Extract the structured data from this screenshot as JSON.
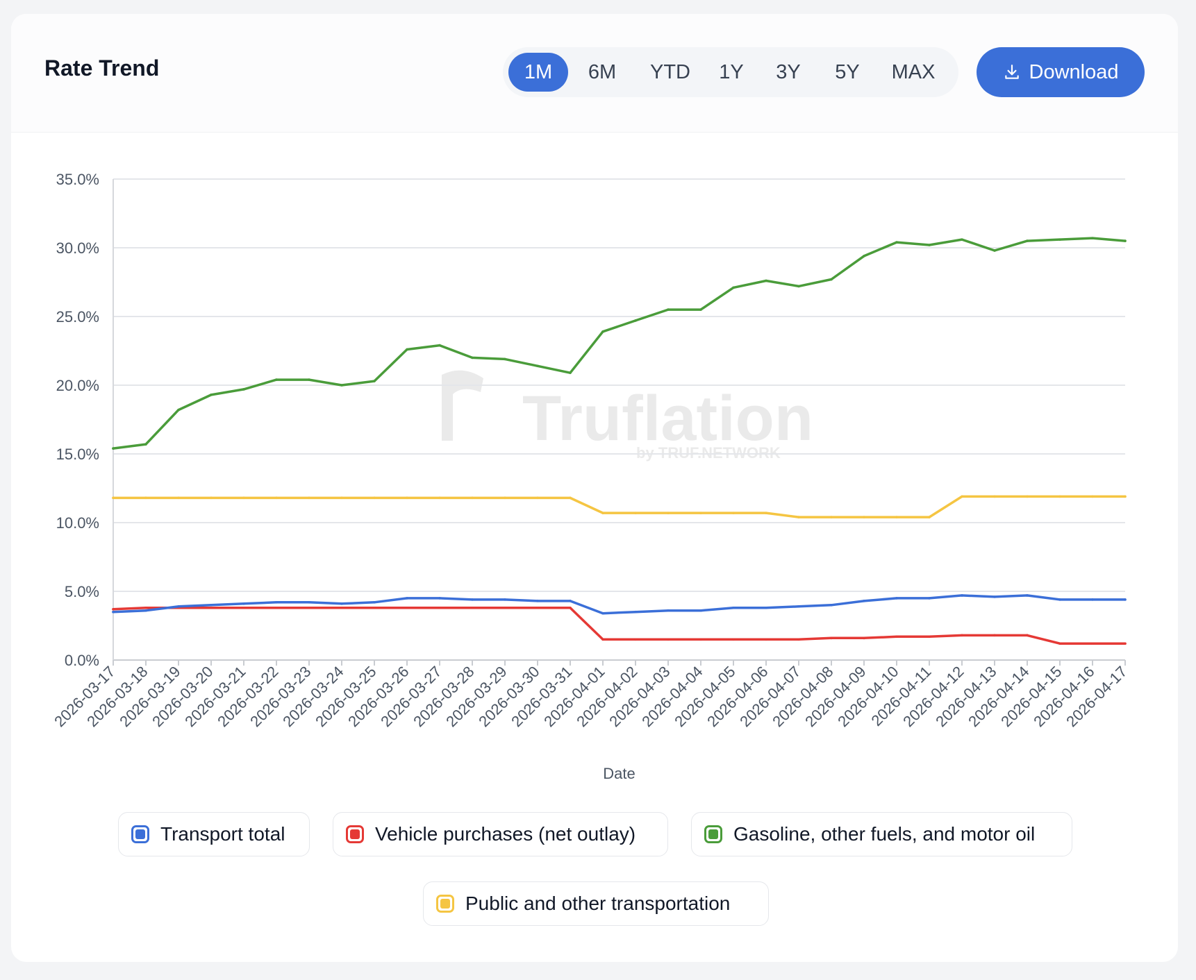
{
  "header": {
    "title": "Rate Trend",
    "ranges": [
      "1M",
      "6M",
      "YTD",
      "1Y",
      "3Y",
      "5Y",
      "MAX"
    ],
    "active_range": "1M",
    "download_label": "Download"
  },
  "watermark": {
    "brand": "Truflation",
    "tagline": "by TRUF.NETWORK"
  },
  "chart_data": {
    "type": "line",
    "title": "Rate Trend",
    "xlabel": "Date",
    "ylabel": "",
    "ylim": [
      0,
      35
    ],
    "yticks": [
      "0.0%",
      "5.0%",
      "10.0%",
      "15.0%",
      "20.0%",
      "25.0%",
      "30.0%",
      "35.0%"
    ],
    "grid": true,
    "legend_position": "bottom",
    "x": [
      "2026-03-17",
      "2026-03-18",
      "2026-03-19",
      "2026-03-20",
      "2026-03-21",
      "2026-03-22",
      "2026-03-23",
      "2026-03-24",
      "2026-03-25",
      "2026-03-26",
      "2026-03-27",
      "2026-03-28",
      "2026-03-29",
      "2026-03-30",
      "2026-03-31",
      "2026-04-01",
      "2026-04-02",
      "2026-04-03",
      "2026-04-04",
      "2026-04-05",
      "2026-04-06",
      "2026-04-07",
      "2026-04-08",
      "2026-04-09",
      "2026-04-10",
      "2026-04-11",
      "2026-04-12",
      "2026-04-13",
      "2026-04-14",
      "2026-04-15",
      "2026-04-16",
      "2026-04-17"
    ],
    "series": [
      {
        "name": "Transport total",
        "color": "#3b6fd8",
        "values": [
          3.5,
          3.6,
          3.9,
          4.0,
          4.1,
          4.2,
          4.2,
          4.1,
          4.2,
          4.5,
          4.5,
          4.4,
          4.4,
          4.3,
          4.3,
          3.4,
          3.5,
          3.6,
          3.6,
          3.8,
          3.8,
          3.9,
          4.0,
          4.3,
          4.5,
          4.5,
          4.7,
          4.6,
          4.7,
          4.4,
          4.4,
          4.4
        ]
      },
      {
        "name": "Vehicle purchases (net outlay)",
        "color": "#e53935",
        "values": [
          3.7,
          3.8,
          3.8,
          3.8,
          3.8,
          3.8,
          3.8,
          3.8,
          3.8,
          3.8,
          3.8,
          3.8,
          3.8,
          3.8,
          3.8,
          1.5,
          1.5,
          1.5,
          1.5,
          1.5,
          1.5,
          1.5,
          1.6,
          1.6,
          1.7,
          1.7,
          1.8,
          1.8,
          1.8,
          1.2,
          1.2,
          1.2
        ]
      },
      {
        "name": "Gasoline, other fuels, and motor oil",
        "color": "#4a9c3a",
        "values": [
          15.4,
          15.7,
          18.2,
          19.3,
          19.7,
          20.4,
          20.4,
          20.0,
          20.3,
          22.6,
          22.9,
          22.0,
          21.9,
          21.4,
          20.9,
          23.9,
          24.7,
          25.5,
          25.5,
          27.1,
          27.6,
          27.2,
          27.7,
          29.4,
          30.4,
          30.2,
          30.6,
          29.8,
          30.5,
          30.6,
          30.7,
          30.5
        ]
      },
      {
        "name": "Public and other transportation",
        "color": "#f5c542",
        "values": [
          11.8,
          11.8,
          11.8,
          11.8,
          11.8,
          11.8,
          11.8,
          11.8,
          11.8,
          11.8,
          11.8,
          11.8,
          11.8,
          11.8,
          11.8,
          10.7,
          10.7,
          10.7,
          10.7,
          10.7,
          10.7,
          10.4,
          10.4,
          10.4,
          10.4,
          10.4,
          11.9,
          11.9,
          11.9,
          11.9,
          11.9,
          11.9
        ]
      }
    ]
  }
}
